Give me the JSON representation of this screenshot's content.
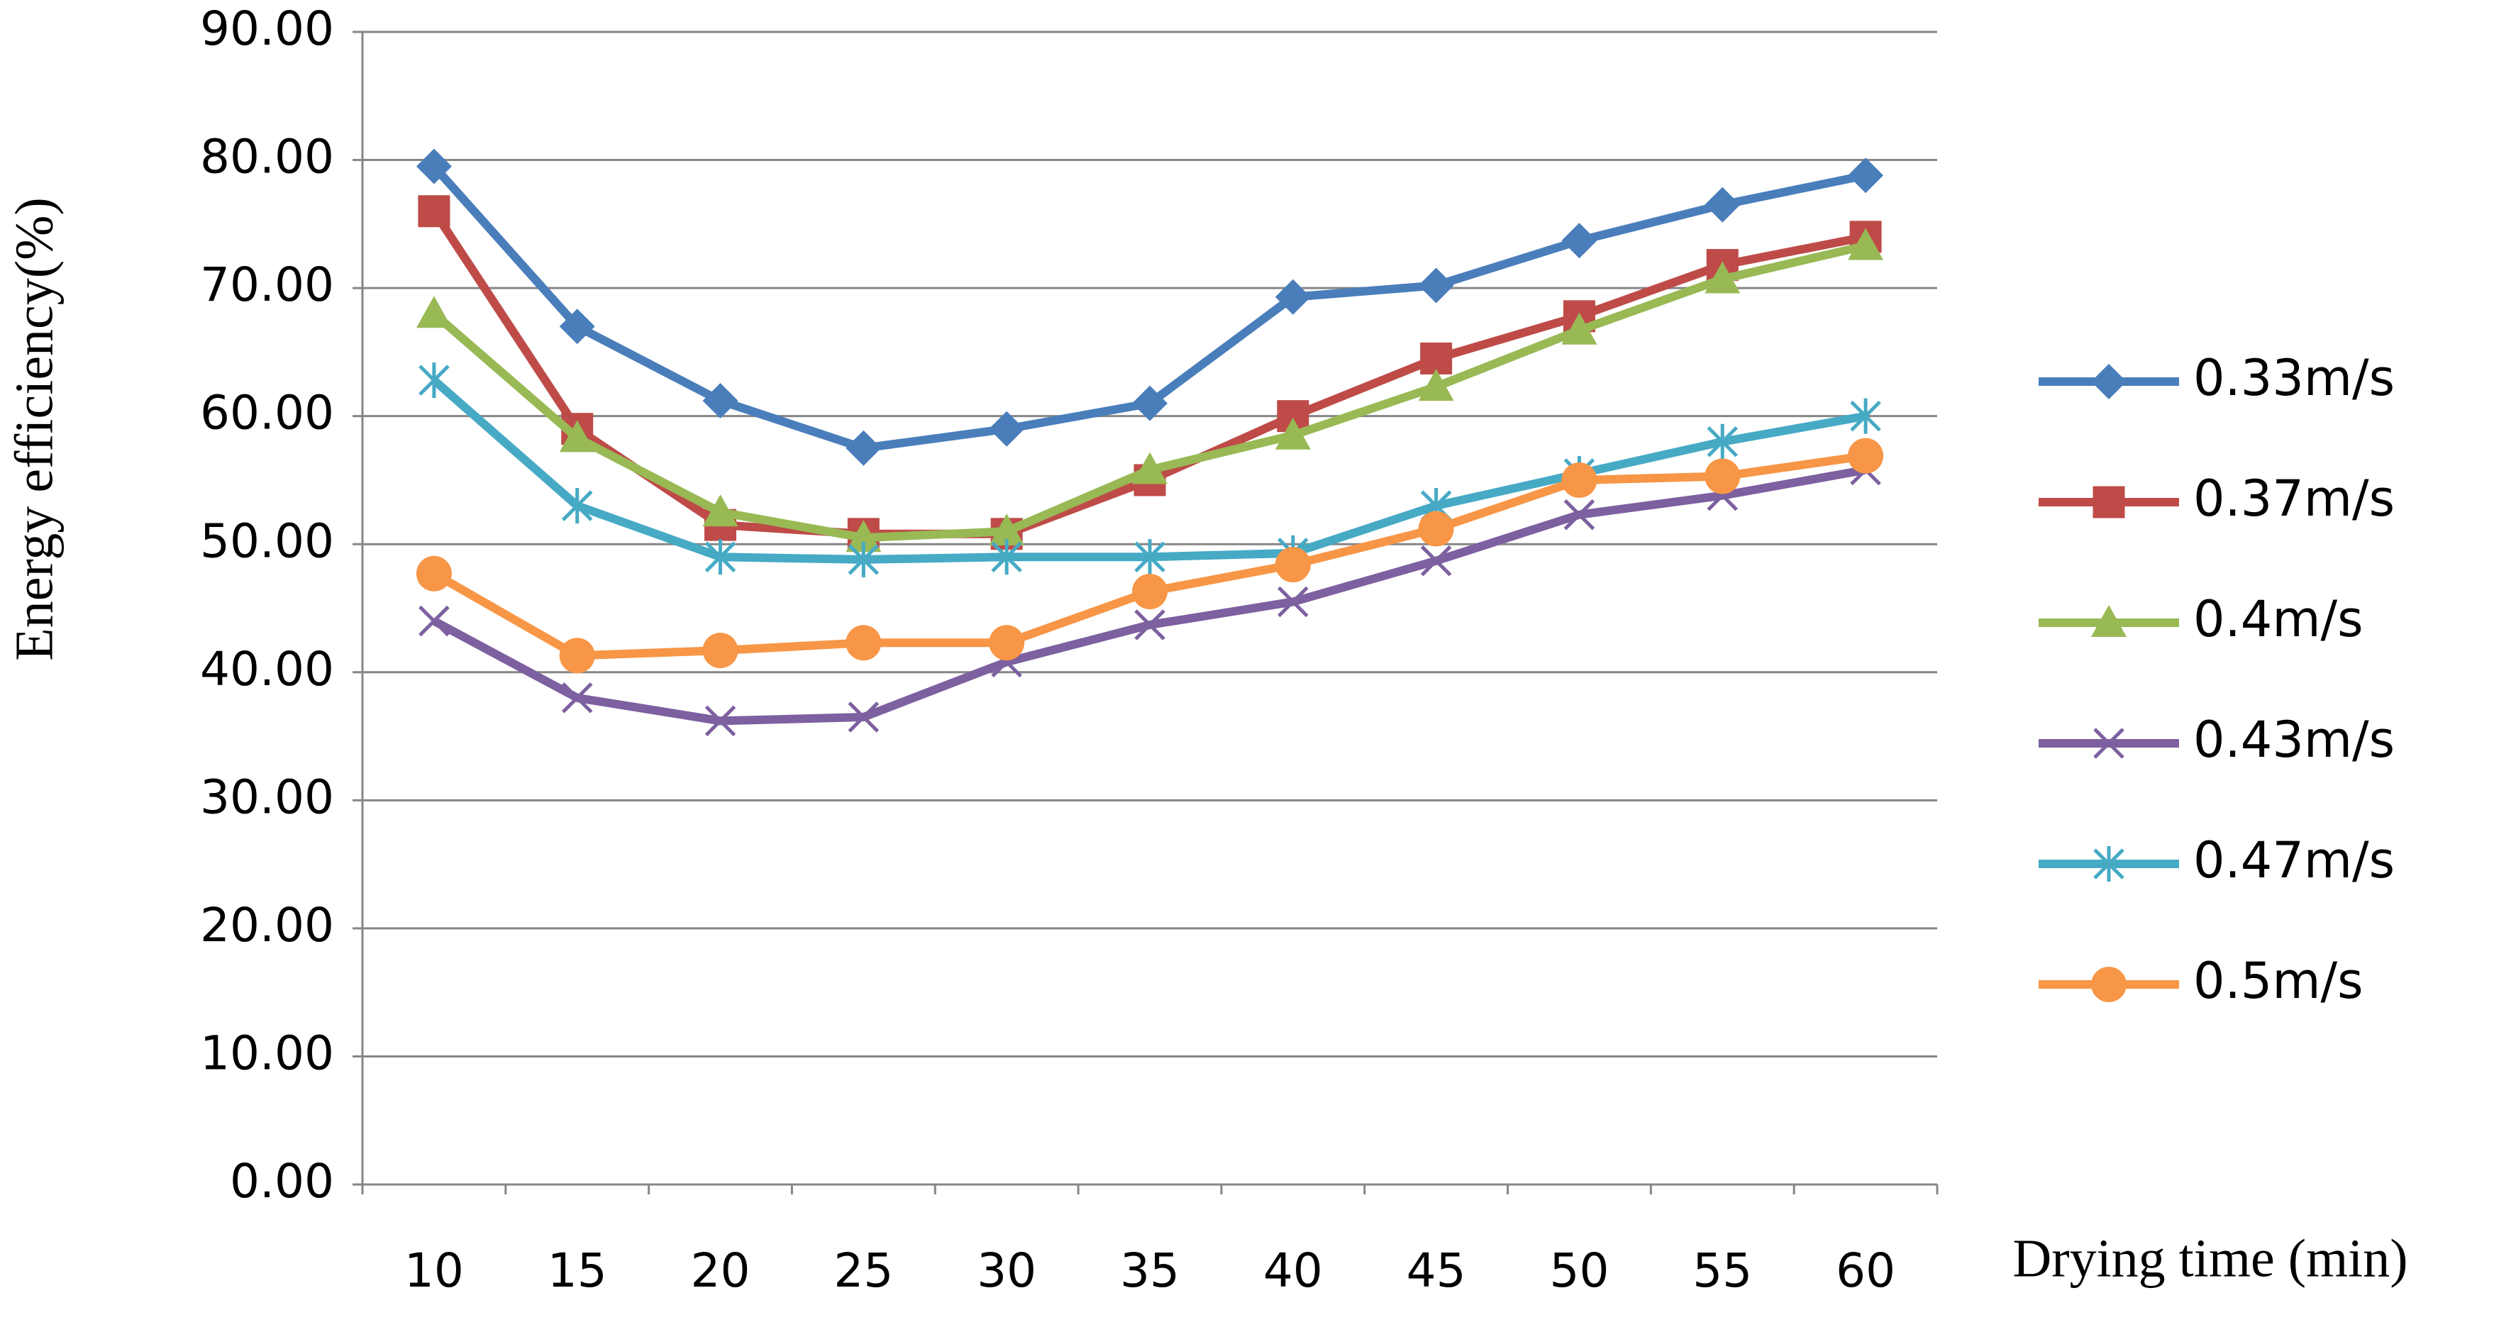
{
  "chart_data": {
    "type": "line",
    "x_label": "Drying time (min)",
    "y_label": "Energy efficiency(%)",
    "categories": [
      "10",
      "15",
      "20",
      "25",
      "30",
      "35",
      "40",
      "45",
      "50",
      "55",
      "60"
    ],
    "series": [
      {
        "name": "0.33m/s",
        "color": "#4a7ebb",
        "marker": "diamond",
        "values": [
          79.5,
          67,
          61.2,
          57.5,
          59,
          61,
          69.3,
          70.2,
          73.7,
          76.5,
          78.8
        ]
      },
      {
        "name": "0.37m/s",
        "color": "#be4b48",
        "marker": "square",
        "values": [
          76,
          59,
          51.5,
          50.8,
          50.8,
          55,
          60,
          64.5,
          67.8,
          71.8,
          74
        ]
      },
      {
        "name": "0.4m/s",
        "color": "#98b954",
        "marker": "triangle",
        "values": [
          68,
          58.3,
          52.5,
          50.5,
          51,
          55.8,
          58.5,
          62.3,
          66.7,
          70.7,
          73.3
        ]
      },
      {
        "name": "0.43m/s",
        "color": "#7d60a0",
        "marker": "x",
        "values": [
          44,
          38,
          36.2,
          36.5,
          40.8,
          43.7,
          45.5,
          48.7,
          52.3,
          53.8,
          55.8
        ]
      },
      {
        "name": "0.47m/s",
        "color": "#46aac5",
        "marker": "asterisk",
        "values": [
          62.8,
          53,
          49,
          48.8,
          49,
          49,
          49.3,
          53,
          55.5,
          58,
          60
        ]
      },
      {
        "name": "0.5m/s",
        "color": "#f79646",
        "marker": "circle",
        "values": [
          47.7,
          41.3,
          41.7,
          42.3,
          42.3,
          46.3,
          48.4,
          51.2,
          55,
          55.3,
          56.9
        ]
      }
    ],
    "ylim": [
      0,
      90
    ],
    "yticks": [
      {
        "value": 0,
        "label": "0.00"
      },
      {
        "value": 10,
        "label": "10.00"
      },
      {
        "value": 20,
        "label": "20.00"
      },
      {
        "value": 30,
        "label": "30.00"
      },
      {
        "value": 40,
        "label": "40.00"
      },
      {
        "value": 50,
        "label": "50.00"
      },
      {
        "value": 60,
        "label": "60.00"
      },
      {
        "value": 70,
        "label": "70.00"
      },
      {
        "value": 80,
        "label": "80.00"
      },
      {
        "value": 90,
        "label": "90.00"
      }
    ],
    "grid": true,
    "legend": "right"
  }
}
